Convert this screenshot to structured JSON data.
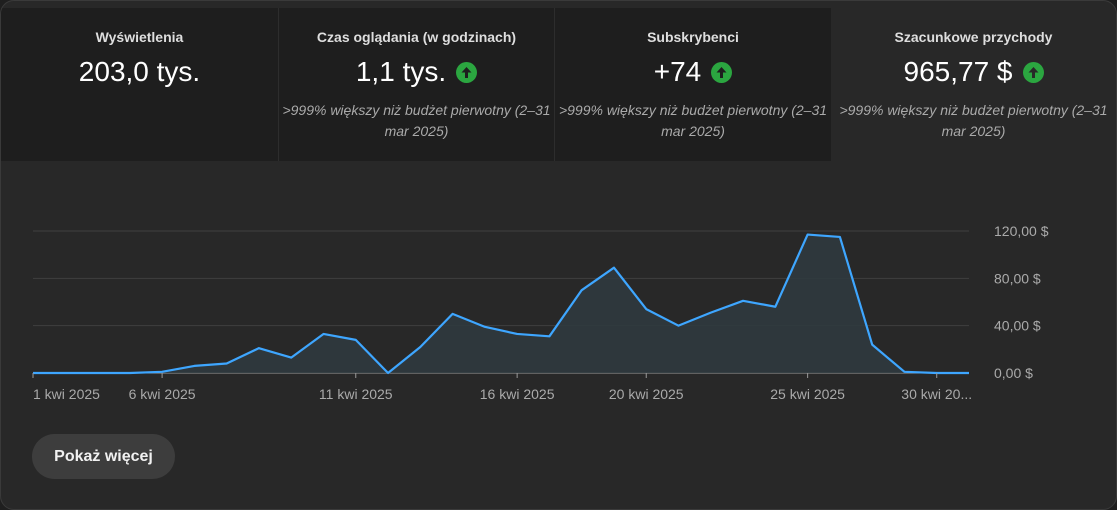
{
  "metrics": [
    {
      "label": "Wyświetlenia",
      "value": "203,0 tys.",
      "trend": "",
      "note": ""
    },
    {
      "label": "Czas oglądania (w godzinach)",
      "value": "1,1 tys.",
      "trend": "up-arrow-icon",
      "note": ">999% większy niż budżet pierwotny (2–31 mar 2025)"
    },
    {
      "label": "Subskrybenci",
      "value": "+74",
      "trend": "up-arrow-icon",
      "note": ">999% większy niż budżet pierwotny (2–31 mar 2025)"
    },
    {
      "label": "Szacunkowe przychody",
      "value": "965,77 $",
      "trend": "up-arrow-icon",
      "note": ">999% większy niż budżet pierwotny (2–31 mar 2025)"
    }
  ],
  "colors": {
    "line": "#3ea6ff",
    "up": "#2ba640",
    "grid": "#3f3f3f"
  },
  "show_more_label": "Pokaż więcej",
  "chart_data": {
    "type": "area",
    "title": "",
    "xlabel": "",
    "ylabel": "",
    "x": [
      "1 kwi 2025",
      "2 kwi 2025",
      "3 kwi 2025",
      "4 kwi 2025",
      "5 kwi 2025",
      "6 kwi 2025",
      "7 kwi 2025",
      "8 kwi 2025",
      "9 kwi 2025",
      "10 kwi 2025",
      "11 kwi 2025",
      "12 kwi 2025",
      "13 kwi 2025",
      "14 kwi 2025",
      "15 kwi 2025",
      "16 kwi 2025",
      "17 kwi 2025",
      "18 kwi 2025",
      "19 kwi 2025",
      "20 kwi 2025",
      "21 kwi 2025",
      "22 kwi 2025",
      "23 kwi 2025",
      "24 kwi 2025",
      "25 kwi 2025",
      "26 kwi 2025",
      "27 kwi 2025",
      "28 kwi 2025",
      "29 kwi 2025",
      "30 kwi 2025"
    ],
    "values": [
      0,
      0,
      0,
      0,
      1,
      6,
      8,
      21,
      13,
      33,
      28,
      0,
      22,
      50,
      39,
      33,
      31,
      70,
      89,
      54,
      40,
      51,
      61,
      56,
      117,
      115,
      24,
      1,
      0,
      0
    ],
    "tick_labels": [
      "1 kwi 2025",
      "6 kwi 2025",
      "11 kwi 2025",
      "16 kwi 2025",
      "20 kwi 2025",
      "25 kwi 2025",
      "30 kwi 20..."
    ],
    "tick_index": [
      0,
      4,
      10,
      15,
      19,
      24,
      28
    ],
    "y_ticks": [
      0,
      40,
      80,
      120
    ],
    "y_tick_labels": [
      "0,00 $",
      "40,00 $",
      "80,00 $",
      "120,00 $"
    ],
    "ylim": [
      0,
      120
    ],
    "grid": true,
    "y_axis_position": "right"
  }
}
